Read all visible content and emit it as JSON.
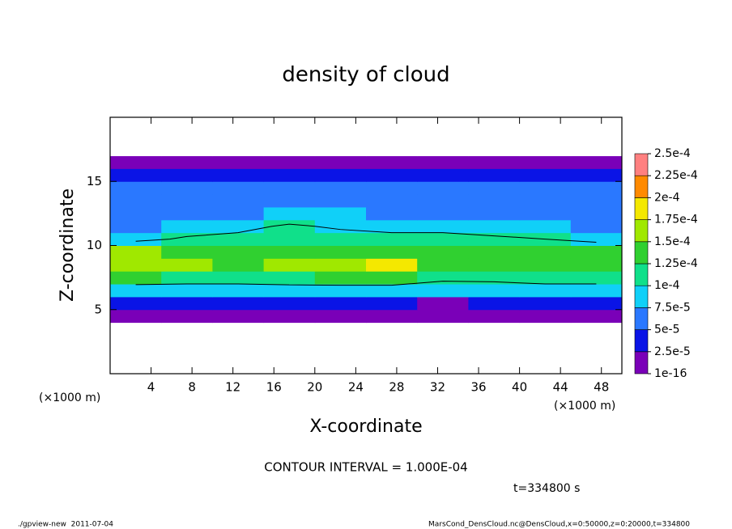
{
  "chart_data": {
    "type": "heatmap",
    "title": "density of cloud",
    "x_label": "X-coordinate",
    "y_label": "Z-coordinate",
    "x_unit_left": "(×1000 m)",
    "x_unit_right": "(×1000 m)",
    "xlim": [
      0,
      50
    ],
    "xticks": [
      4,
      8,
      12,
      16,
      20,
      24,
      28,
      32,
      36,
      40,
      44,
      48
    ],
    "ylim": [
      0,
      20
    ],
    "yticks": [
      5,
      10,
      15
    ],
    "x_edges": [
      0,
      5,
      10,
      15,
      20,
      25,
      30,
      35,
      40,
      45,
      50
    ],
    "y_edges": [
      0,
      1,
      2,
      3,
      4,
      5,
      6,
      7,
      8,
      9,
      10,
      11,
      12,
      13,
      14,
      15,
      16,
      17,
      18,
      19,
      20
    ],
    "values": [
      [
        0,
        0,
        0,
        0,
        0,
        0,
        0,
        0,
        0,
        0
      ],
      [
        0,
        0,
        0,
        0,
        0,
        0,
        0,
        0,
        0,
        0
      ],
      [
        0,
        0,
        0,
        0,
        0,
        0,
        0,
        0,
        0,
        0
      ],
      [
        0,
        0,
        0,
        0,
        0,
        0,
        0,
        0,
        0,
        0
      ],
      [
        1e-05,
        1e-05,
        1e-05,
        1e-05,
        1e-05,
        1e-05,
        1e-05,
        1e-05,
        1e-05,
        1e-05
      ],
      [
        3e-05,
        3e-05,
        3e-05,
        3e-05,
        3e-05,
        2.5e-05,
        2e-05,
        3e-05,
        3e-05,
        3e-05
      ],
      [
        8e-05,
        8e-05,
        8e-05,
        8.5e-05,
        8e-05,
        8e-05,
        7.5e-05,
        8e-05,
        8e-05,
        8e-05
      ],
      [
        0.000125,
        0.00012,
        0.00012,
        0.00012,
        0.00013,
        0.00013,
        0.00011,
        0.00011,
        0.00012,
        0.00012
      ],
      [
        0.00017,
        0.00015,
        0.00014,
        0.00015,
        0.00017,
        0.00018,
        0.00014,
        0.00014,
        0.00014,
        0.00014
      ],
      [
        0.00015,
        0.00013,
        0.00013,
        0.00014,
        0.00014,
        0.00014,
        0.00013,
        0.00013,
        0.00013,
        0.00013
      ],
      [
        9e-05,
        0.000105,
        0.00011,
        0.00012,
        0.000115,
        0.00011,
        0.00011,
        0.000105,
        0.0001,
        9e-05
      ],
      [
        7e-05,
        8e-05,
        9e-05,
        0.000105,
        9.5e-05,
        9e-05,
        9e-05,
        8.5e-05,
        8e-05,
        7e-05
      ],
      [
        6e-05,
        6.5e-05,
        7e-05,
        7.5e-05,
        7.5e-05,
        7e-05,
        7e-05,
        7e-05,
        6.5e-05,
        6e-05
      ],
      [
        5.5e-05,
        6e-05,
        6e-05,
        6e-05,
        6e-05,
        6e-05,
        6e-05,
        6e-05,
        5.5e-05,
        5.5e-05
      ],
      [
        5e-05,
        5e-05,
        5e-05,
        5e-05,
        5e-05,
        5e-05,
        5e-05,
        5e-05,
        5e-05,
        5e-05
      ],
      [
        4e-05,
        4e-05,
        4e-05,
        4e-05,
        4e-05,
        4e-05,
        4e-05,
        4e-05,
        4e-05,
        4e-05
      ],
      [
        1e-05,
        1e-05,
        1e-05,
        1e-05,
        1e-05,
        1e-05,
        1e-05,
        1e-05,
        1e-05,
        1e-05
      ],
      [
        0,
        0,
        0,
        0,
        0,
        0,
        0,
        0,
        0,
        0
      ],
      [
        0,
        0,
        0,
        0,
        0,
        0,
        0,
        0,
        0,
        0
      ],
      [
        0,
        0,
        0,
        0,
        0,
        0,
        0,
        0,
        0,
        0
      ]
    ],
    "levels": [
      {
        "value": 1e-16,
        "label": "1e-16"
      },
      {
        "value": 2.5e-05,
        "label": "2.5e-5"
      },
      {
        "value": 5e-05,
        "label": "5e-5"
      },
      {
        "value": 7.5e-05,
        "label": "7.5e-5"
      },
      {
        "value": 0.0001,
        "label": "1e-4"
      },
      {
        "value": 0.000125,
        "label": "1.25e-4"
      },
      {
        "value": 0.00015,
        "label": "1.5e-4"
      },
      {
        "value": 0.000175,
        "label": "1.75e-4"
      },
      {
        "value": 0.0002,
        "label": "2e-4"
      },
      {
        "value": 0.000225,
        "label": "2.25e-4"
      },
      {
        "value": 0.00025,
        "label": "2.5e-4"
      }
    ],
    "colors": [
      "#7a00b8",
      "#0a14e6",
      "#2a78ff",
      "#10d0f8",
      "#10e08a",
      "#30d030",
      "#a0e800",
      "#f4e800",
      "#ff8a00",
      "#ff8080"
    ],
    "contour_level": 0.0001,
    "contour_text": "CONTOUR INTERVAL = 1.000E-04",
    "time_text": "t=334800 s",
    "footer_left": "./gpview-new  2011-07-04",
    "footer_right": "MarsCond_DensCloud.nc@DensCloud,x=0:50000,z=0:20000,t=334800"
  }
}
